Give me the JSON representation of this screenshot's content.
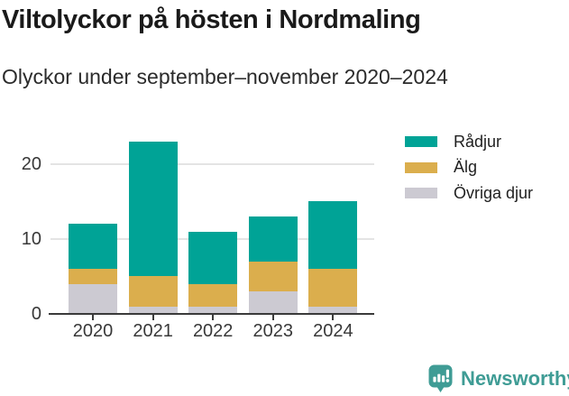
{
  "header": {
    "title": "Viltolyckor på hösten i Nordmaling",
    "subtitle": "Olyckor under september–november 2020–2024"
  },
  "chart_data": {
    "type": "bar",
    "stacked": true,
    "categories": [
      "2020",
      "2021",
      "2022",
      "2023",
      "2024"
    ],
    "series": [
      {
        "name": "Rådjur",
        "color": "#00a396",
        "values": [
          6,
          18,
          7,
          6,
          9
        ]
      },
      {
        "name": "Älg",
        "color": "#dbae4d",
        "values": [
          2,
          4,
          3,
          4,
          5
        ]
      },
      {
        "name": "Övriga djur",
        "color": "#cccad2",
        "values": [
          4,
          1,
          1,
          3,
          1
        ]
      }
    ],
    "totals": [
      12,
      23,
      11,
      13,
      15
    ],
    "title": "Viltolyckor på hösten i Nordmaling",
    "xlabel": "",
    "ylabel": "",
    "y_ticks": [
      0,
      10,
      20
    ],
    "ylim": [
      0,
      25
    ],
    "grid": true,
    "legend_position": "right"
  },
  "footer": {
    "brand": "Newsworthy",
    "brand_color": "#3f9c95"
  },
  "colors": {
    "background": "#ffffff",
    "grid": "#e4e4e4",
    "axis": "#3a3a3a",
    "title_text": "#1a1a1a",
    "subtitle_text": "#2b2b2b",
    "tick_label_text": "#383838",
    "legend_text": "#1f1f1f"
  }
}
